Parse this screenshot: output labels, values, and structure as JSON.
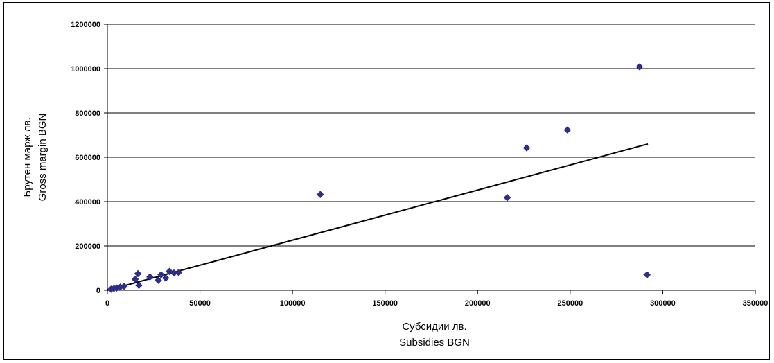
{
  "chart_data": {
    "type": "scatter",
    "title": "",
    "xlabel": [
      "Субсидии лв.",
      "Subsidies BGN"
    ],
    "ylabel": [
      "Брутен марж лв.",
      "Gross margin BGN"
    ],
    "xlim": [
      0,
      350000
    ],
    "ylim": [
      0,
      1200000
    ],
    "x_ticks": [
      "0",
      "50000",
      "100000",
      "150000",
      "200000",
      "250000",
      "300000",
      "350000"
    ],
    "y_ticks": [
      "0",
      "200000",
      "400000",
      "600000",
      "800000",
      "1000000",
      "1200000"
    ],
    "grid": "horizontal",
    "marker_color": "#2E2E8C",
    "trendline": {
      "x": [
        0,
        292000
      ],
      "y": [
        0,
        660000
      ]
    },
    "points": [
      {
        "x": 2000,
        "y": 5000
      },
      {
        "x": 3500,
        "y": 8000
      },
      {
        "x": 5000,
        "y": 10000
      },
      {
        "x": 7000,
        "y": 15000
      },
      {
        "x": 9000,
        "y": 18000
      },
      {
        "x": 15000,
        "y": 50000
      },
      {
        "x": 16500,
        "y": 75000
      },
      {
        "x": 17000,
        "y": 22000
      },
      {
        "x": 23000,
        "y": 60000
      },
      {
        "x": 27500,
        "y": 45000
      },
      {
        "x": 29000,
        "y": 70000
      },
      {
        "x": 31500,
        "y": 55000
      },
      {
        "x": 33500,
        "y": 85000
      },
      {
        "x": 36000,
        "y": 78000
      },
      {
        "x": 38500,
        "y": 80000
      },
      {
        "x": 115000,
        "y": 432000
      },
      {
        "x": 216000,
        "y": 418000
      },
      {
        "x": 226500,
        "y": 642000
      },
      {
        "x": 248500,
        "y": 723000
      },
      {
        "x": 287500,
        "y": 1008000
      },
      {
        "x": 291500,
        "y": 70000
      }
    ]
  }
}
